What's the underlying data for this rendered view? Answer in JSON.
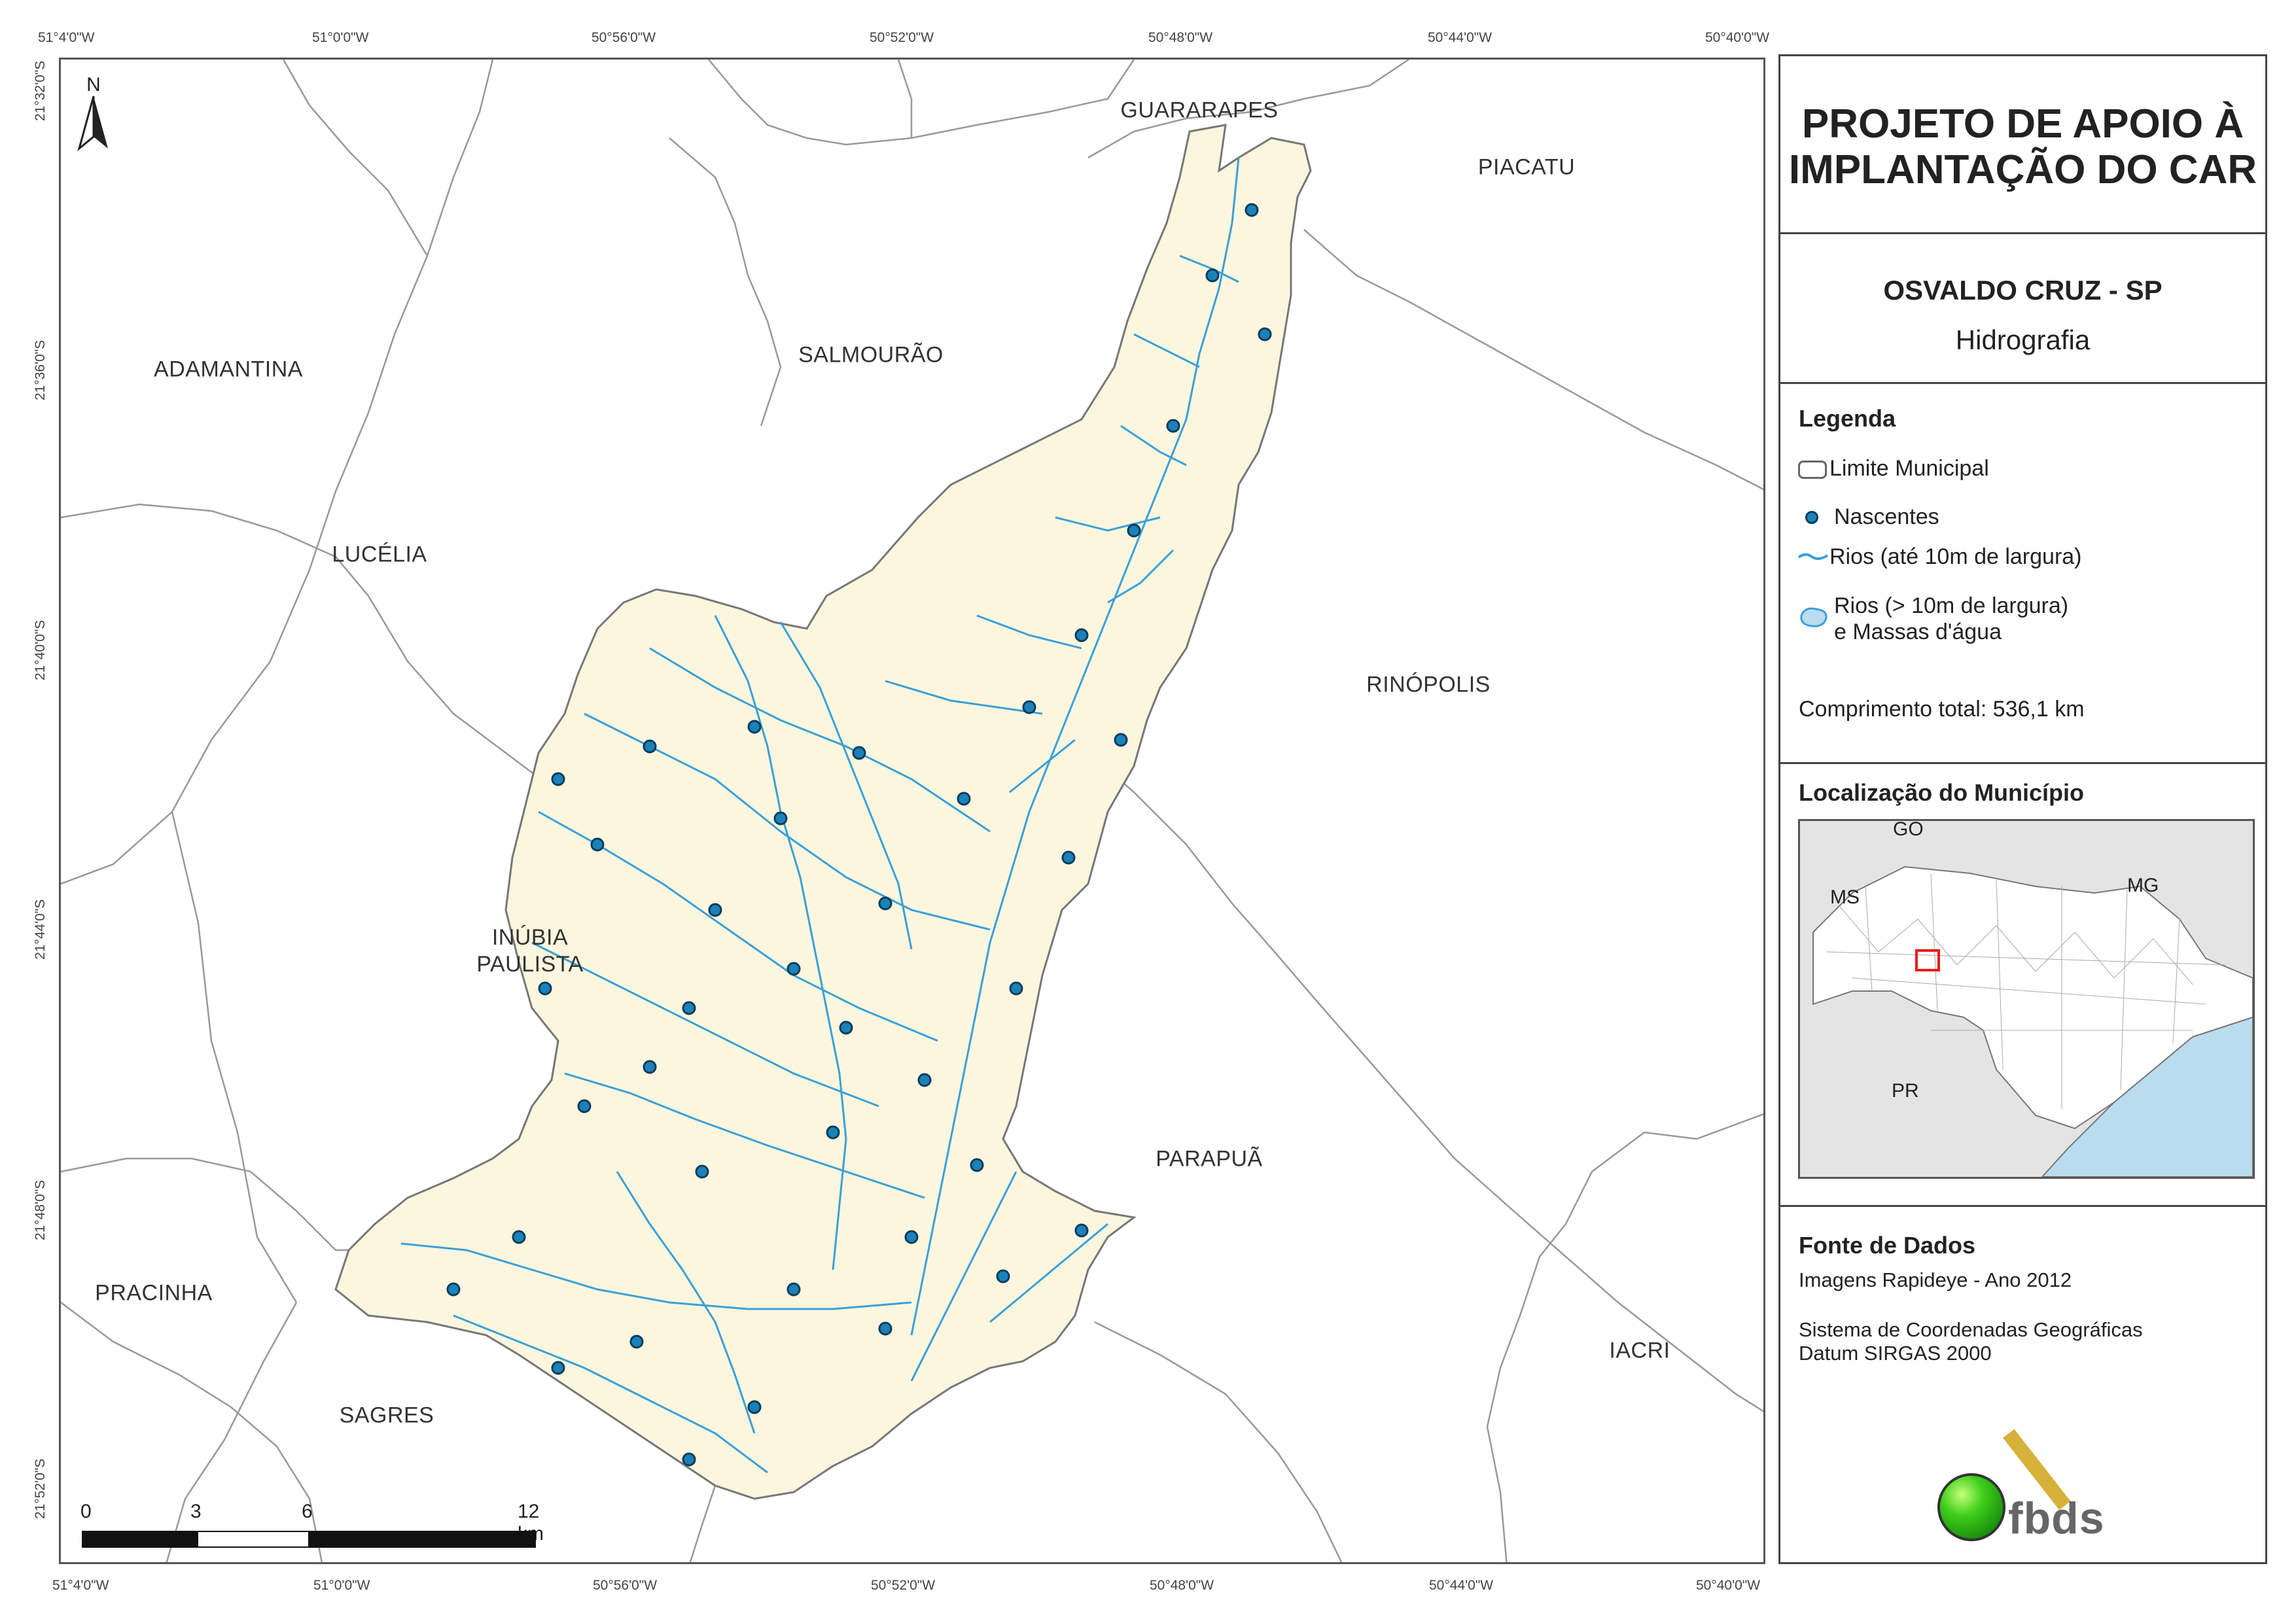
{
  "title": {
    "line1": "PROJETO DE APOIO À",
    "line2": "IMPLANTAÇÃO DO CAR"
  },
  "municipality": "OSVALDO CRUZ - SP",
  "theme": "Hidrografia",
  "legend": {
    "heading": "Legenda",
    "items": [
      {
        "icon": "municipal-boundary-swatch",
        "label": "Limite Municipal"
      },
      {
        "icon": "spring-point-symbol",
        "label": "Nascentes"
      },
      {
        "icon": "river-line-symbol",
        "label": "Rios (até 10m de largura)"
      },
      {
        "icon": "water-body-symbol",
        "label_line1": "Rios (> 10m de largura)",
        "label_line2": "e Massas d'água"
      }
    ],
    "total_length": "Comprimento total: 536,1 km"
  },
  "locator": {
    "heading": "Localização do Município",
    "labels": [
      "GO",
      "MS",
      "MG",
      "PR"
    ]
  },
  "sources": {
    "heading": "Fonte de Dados",
    "line1": "Imagens Rapideye - Ano 2012",
    "line2": "Sistema de Coordenadas Geográficas",
    "line3": "Datum SIRGAS 2000"
  },
  "logo": {
    "text": "fbds"
  },
  "coords": {
    "lon_top": [
      "51°4'0\"W",
      "51°0'0\"W",
      "50°56'0\"W",
      "50°52'0\"W",
      "50°48'0\"W",
      "50°44'0\"W",
      "50°40'0\"W"
    ],
    "lon_bottom": [
      "51°4'0\"W",
      "51°0'0\"W",
      "50°56'0\"W",
      "50°52'0\"W",
      "50°48'0\"W",
      "50°44'0\"W",
      "50°40'0\"W"
    ],
    "lat_left": [
      "21°32'0\"S",
      "21°36'0\"S",
      "21°40'0\"S",
      "21°44'0\"S",
      "21°48'0\"S",
      "21°52'0\"S"
    ]
  },
  "places": {
    "guararapes": "GUARARAPES",
    "piacatu": "PIACATU",
    "salmourao": "SALMOURÃO",
    "adamantina": "ADAMANTINA",
    "lucelia": "LUCÉLIA",
    "rinopolis": "RINÓPOLIS",
    "inubia_1": "INÚBIA",
    "inubia_2": "PAULISTA",
    "parapua": "PARAPUÃ",
    "pracinha": "PRACINHA",
    "sagres": "SAGRES",
    "iacri": "IACRI"
  },
  "north_arrow": {
    "label": "N"
  },
  "scale_bar": {
    "ticks": [
      "0",
      "3",
      "6",
      "12 km"
    ]
  },
  "colors": {
    "municipality_fill": "#fcf6df",
    "river": "#3aa0d8",
    "spring_fill": "#1a82b8",
    "spring_stroke": "#0c3c5c",
    "boundary": "#777777",
    "water": "#b9dcef",
    "highlight": "#e81c1c"
  }
}
